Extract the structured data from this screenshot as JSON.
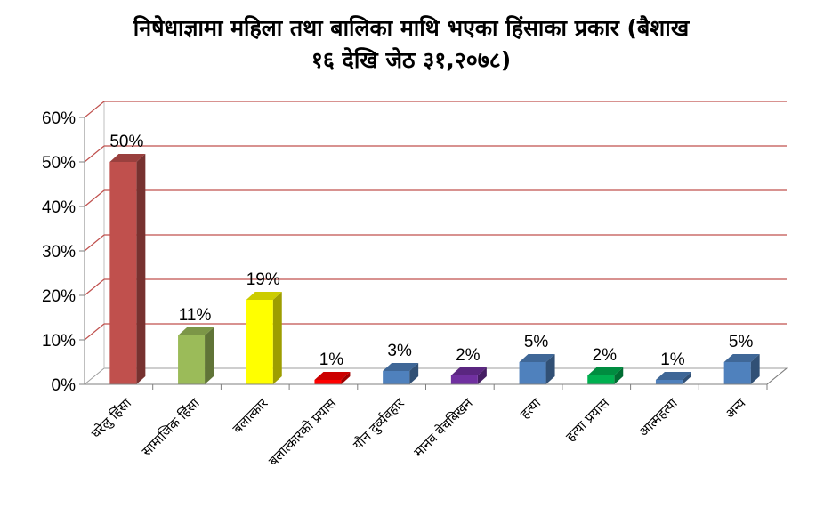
{
  "chart_data": {
    "type": "bar",
    "title_lines": [
      "निषेधाज्ञामा महिला तथा बालिका माथि भएका हिंसाका प्रकार (बैशाख",
      "१६ देखि जेठ ३१,२०७८)"
    ],
    "categories": [
      "घरेलु हिंसा",
      "सामाजिक हिंसा",
      "बलात्कार",
      "बलात्कारको प्रयास",
      "यौन दुर्व्यवहार",
      "मानव बेचबिखन",
      "हत्या",
      "हत्या प्रयास",
      "आत्महत्या",
      "अन्य"
    ],
    "values": [
      50,
      11,
      19,
      1,
      3,
      2,
      5,
      2,
      1,
      5
    ],
    "data_labels": [
      "50%",
      "11%",
      "19%",
      "1%",
      "3%",
      "2%",
      "5%",
      "2%",
      "1%",
      "5%"
    ],
    "y_ticks": [
      "0%",
      "10%",
      "20%",
      "30%",
      "40%",
      "50%",
      "60%"
    ],
    "ylim": [
      0,
      60
    ],
    "grid": true,
    "legend": "none",
    "colors": [
      "#c0504d",
      "#9bbb59",
      "#ffff00",
      "#ff0000",
      "#4f81bd",
      "#7030a0",
      "#4f81bd",
      "#00b050",
      "#4f81bd",
      "#4f81bd"
    ],
    "grid_color": "#c0504d"
  }
}
